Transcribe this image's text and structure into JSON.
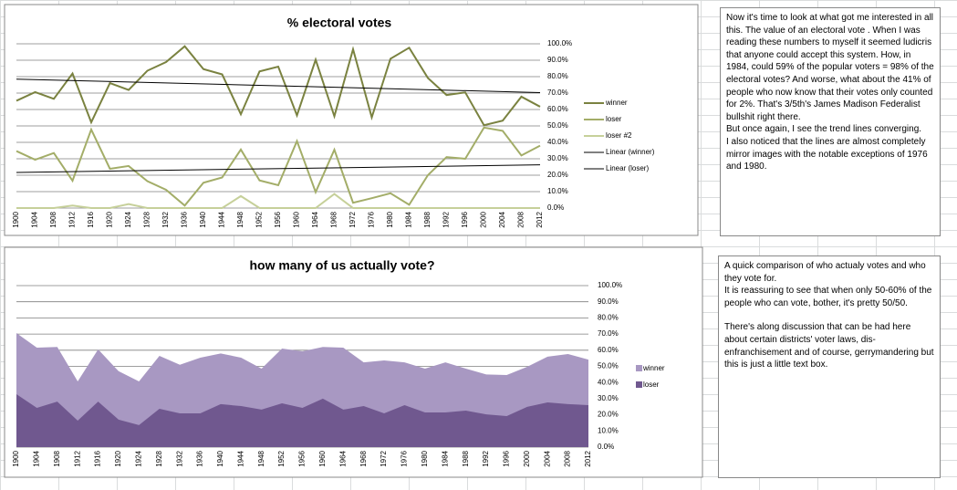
{
  "chart_data": [
    {
      "type": "line",
      "title": "% electoral votes",
      "categories": [
        "1900",
        "1904",
        "1908",
        "1912",
        "1916",
        "1920",
        "1924",
        "1928",
        "1932",
        "1936",
        "1940",
        "1944",
        "1948",
        "1952",
        "1956",
        "1960",
        "1964",
        "1968",
        "1972",
        "1976",
        "1980",
        "1984",
        "1988",
        "1992",
        "1996",
        "2000",
        "2004",
        "2008",
        "2012"
      ],
      "series": [
        {
          "name": "winner",
          "color": "#7a8240",
          "values": [
            65.3,
            70.6,
            66.5,
            81.9,
            52.2,
            76.1,
            71.9,
            83.6,
            88.9,
            98.5,
            84.6,
            81.4,
            57.1,
            83.2,
            86.1,
            56.4,
            90.3,
            55.9,
            96.7,
            55.2,
            90.9,
            97.6,
            79.2,
            68.8,
            70.4,
            50.4,
            53.2,
            67.8,
            61.7
          ]
        },
        {
          "name": "loser",
          "color": "#a3ad68",
          "values": [
            34.7,
            29.4,
            33.5,
            16.6,
            47.8,
            23.9,
            25.6,
            16.4,
            11.1,
            1.5,
            15.4,
            18.6,
            35.6,
            16.8,
            13.9,
            40.8,
            9.7,
            35.5,
            3.2,
            6,
            9,
            2,
            20,
            31,
            30,
            49,
            47,
            32,
            38
          ]
        },
        {
          "name": "loser #2",
          "color": "#c6d09a",
          "values": [
            0,
            0,
            0,
            1.5,
            0,
            0,
            2.4,
            0,
            0,
            0,
            0,
            0,
            7.3,
            0,
            0,
            0,
            0,
            8.6,
            0,
            0,
            0,
            0,
            0,
            0,
            0,
            0,
            0,
            0,
            0
          ]
        }
      ],
      "trendlines": [
        {
          "name": "Linear (winner)",
          "color": "#000000",
          "values": [
            78.5,
            70.3
          ]
        },
        {
          "name": "Linear (loser)",
          "color": "#000000",
          "values": [
            21.7,
            26.3
          ]
        }
      ],
      "ylim": [
        0,
        100
      ],
      "yticks": [
        {
          "value": 0,
          "label": "0.0%"
        },
        {
          "value": 10,
          "label": "10.0%"
        },
        {
          "value": 20,
          "label": "20.0%"
        },
        {
          "value": 30,
          "label": "30.0%"
        },
        {
          "value": 40,
          "label": "40.0%"
        },
        {
          "value": 50,
          "label": "50.0%"
        },
        {
          "value": 60,
          "label": "60.0%"
        },
        {
          "value": 70,
          "label": "70.0%"
        },
        {
          "value": 80,
          "label": "80.0%"
        },
        {
          "value": 90,
          "label": "90.0%"
        },
        {
          "value": 100,
          "label": "100.0%"
        }
      ],
      "grid": true,
      "legend": "right"
    },
    {
      "type": "area",
      "title": "how many of us actually vote?",
      "categories": [
        "1900",
        "1904",
        "1908",
        "1912",
        "1916",
        "1920",
        "1924",
        "1928",
        "1932",
        "1936",
        "1940",
        "1944",
        "1948",
        "1952",
        "1956",
        "1960",
        "1964",
        "1968",
        "1972",
        "1976",
        "1980",
        "1984",
        "1988",
        "1992",
        "1996",
        "2000",
        "2004",
        "2008",
        "2012"
      ],
      "series": [
        {
          "name": "winner",
          "color": "#a898c2",
          "values": [
            70.6,
            61.6,
            62,
            40.7,
            60.5,
            47,
            40.7,
            56.5,
            51,
            55.4,
            58,
            55.4,
            48.6,
            61,
            59.3,
            62,
            61.6,
            52.5,
            53.7,
            52.5,
            48.6,
            52.5,
            48.6,
            45,
            44.6,
            49.7,
            56,
            57.6,
            54.2
          ]
        },
        {
          "name": "loser",
          "color": "#70588f",
          "values": [
            32.8,
            24.3,
            28.2,
            16.4,
            28.2,
            17,
            13.6,
            23.7,
            20.9,
            20.9,
            26.6,
            25.4,
            23.2,
            27.1,
            24.3,
            30,
            23.2,
            25.4,
            20.9,
            26,
            21.5,
            21.5,
            22.6,
            20.3,
            19.2,
            24.9,
            27.7,
            26.6,
            26
          ]
        }
      ],
      "ylim": [
        0,
        100
      ],
      "yticks": [
        {
          "value": 0,
          "label": "0.0%"
        },
        {
          "value": 10,
          "label": "10.0%"
        },
        {
          "value": 20,
          "label": "20.0%"
        },
        {
          "value": 30,
          "label": "30.0%"
        },
        {
          "value": 40,
          "label": "40.0%"
        },
        {
          "value": 50,
          "label": "50.0%"
        },
        {
          "value": 60,
          "label": "60.0%"
        },
        {
          "value": 70,
          "label": "70.0%"
        },
        {
          "value": 80,
          "label": "80.0%"
        },
        {
          "value": 90,
          "label": "90.0%"
        },
        {
          "value": 100,
          "label": "100.0%"
        }
      ],
      "grid": true,
      "legend": "right"
    }
  ],
  "notes": [
    {
      "paragraphs": [
        "Now it's time to look at what got me interested in all this. The value of an electoral vote . When I was reading these numbers to myself it seemed ludicris that anyone could accept this system. How, in 1984, could 59% of the popular voters = 98% of the electoral votes? And worse, what about the 41% of people who now know that their votes only counted for 2%. That's 3/5th's James Madison Federalist bullshit right there.",
        "But once again, I see the trend lines converging.",
        "I also noticed that the lines are almost completely mirror images with the notable exceptions of 1976 and 1980."
      ]
    },
    {
      "paragraphs": [
        "A quick comparison of who actualy votes and who they vote for.",
        "It is reassuring to see that when only 50-60% of the people who can vote, bother, it's pretty 50/50.",
        "There's along discussion that can be had here about certain districts' voter laws, dis-enfranchisement and of course, gerrymandering but this is just a little text box."
      ]
    }
  ]
}
